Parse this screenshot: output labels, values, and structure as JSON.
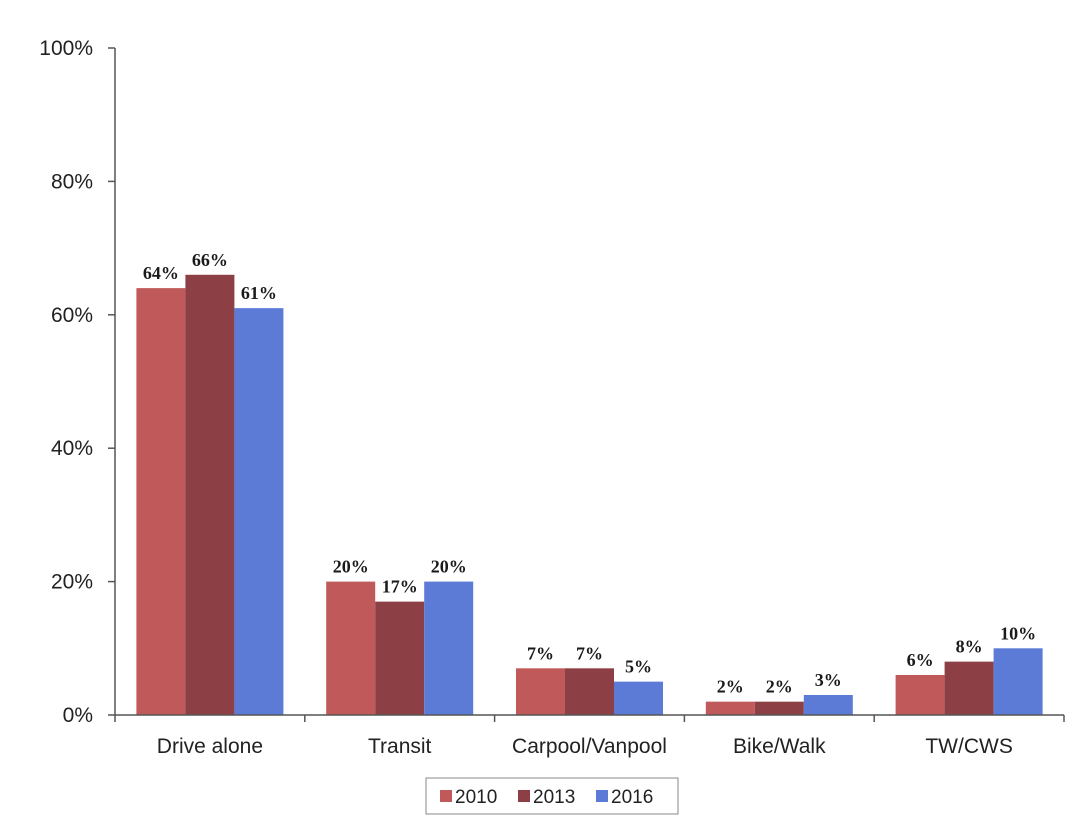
{
  "chart_data": {
    "type": "bar",
    "categories": [
      "Drive alone",
      "Transit",
      "Carpool/Vanpool",
      "Bike/Walk",
      "TW/CWS"
    ],
    "series": [
      {
        "name": "2010",
        "color": "#c0595a",
        "values": [
          64,
          20,
          7,
          2,
          6
        ],
        "labels": [
          "64%",
          "20%",
          "7%",
          "2%",
          "6%"
        ]
      },
      {
        "name": "2013",
        "color": "#8c3f45",
        "values": [
          66,
          17,
          7,
          2,
          8
        ],
        "labels": [
          "66%",
          "17%",
          "7%",
          "2%",
          "8%"
        ]
      },
      {
        "name": "2016",
        "color": "#5b7bd6",
        "values": [
          61,
          20,
          5,
          3,
          10
        ],
        "labels": [
          "61%",
          "20%",
          "5%",
          "3%",
          "10%"
        ]
      }
    ],
    "yticks": [
      {
        "value": 0,
        "label": "0%"
      },
      {
        "value": 20,
        "label": "20%"
      },
      {
        "value": 40,
        "label": "40%"
      },
      {
        "value": 60,
        "label": "60%"
      },
      {
        "value": 80,
        "label": "80%"
      },
      {
        "value": 100,
        "label": "100%"
      }
    ],
    "ylim": [
      0,
      100
    ],
    "title": "",
    "xlabel": "",
    "ylabel": "",
    "grid": false,
    "legend": "bottom-center"
  }
}
